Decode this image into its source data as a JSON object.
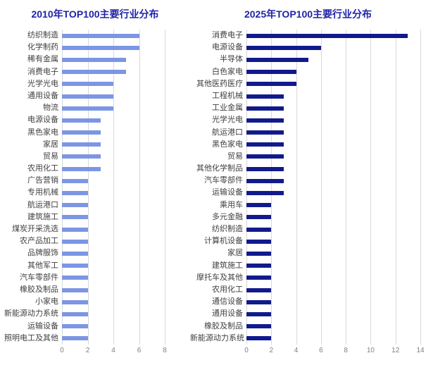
{
  "figure": {
    "background": "#ffffff",
    "title_color": "#1f24a8",
    "category_label_color": "#3f3f3f",
    "axis_tick_color": "#7f7f7f",
    "gridline_color": "#d9d9d9"
  },
  "chart_data": [
    {
      "type": "bar",
      "orientation": "horizontal",
      "title": "2010年TOP100主要行业分布",
      "categories": [
        "纺织制造",
        "化学制药",
        "稀有金属",
        "消费电子",
        "光学光电",
        "通用设备",
        "物流",
        "电源设备",
        "黑色家电",
        "家居",
        "贸易",
        "农用化工",
        "广告营销",
        "专用机械",
        "航运港口",
        "建筑施工",
        "煤炭开采洗选",
        "农产品加工",
        "品牌服饰",
        "其他军工",
        "汽车零部件",
        "橡胶及制品",
        "小家电",
        "新能源动力系统",
        "运输设备",
        "照明电工及其他"
      ],
      "values": [
        6,
        6,
        5,
        5,
        4,
        4,
        4,
        3,
        3,
        3,
        3,
        3,
        2,
        2,
        2,
        2,
        2,
        2,
        2,
        2,
        2,
        2,
        2,
        2,
        2,
        2
      ],
      "xlabel": "",
      "ylabel": "",
      "xlim": [
        0,
        8
      ],
      "xticks": [
        0,
        2,
        4,
        6,
        8
      ],
      "bar_color": "#7c96e4",
      "grid": true,
      "legend": "none"
    },
    {
      "type": "bar",
      "orientation": "horizontal",
      "title": "2025年TOP100主要行业分布",
      "categories": [
        "消费电子",
        "电源设备",
        "半导体",
        "白色家电",
        "其他医药医疗",
        "工程机械",
        "工业金属",
        "光学光电",
        "航运港口",
        "黑色家电",
        "贸易",
        "其他化学制品",
        "汽车零部件",
        "运输设备",
        "乘用车",
        "多元金融",
        "纺织制造",
        "计算机设备",
        "家居",
        "建筑施工",
        "摩托车及其他",
        "农用化工",
        "通信设备",
        "通用设备",
        "橡胶及制品",
        "新能源动力系统"
      ],
      "values": [
        13,
        6,
        5,
        4,
        4,
        3,
        3,
        3,
        3,
        3,
        3,
        3,
        3,
        3,
        2,
        2,
        2,
        2,
        2,
        2,
        2,
        2,
        2,
        2,
        2,
        2
      ],
      "xlabel": "",
      "ylabel": "",
      "xlim": [
        0,
        14
      ],
      "xticks": [
        0,
        2,
        4,
        6,
        8,
        10,
        12,
        14
      ],
      "bar_color": "#111a8c",
      "grid": true,
      "legend": "none"
    }
  ]
}
